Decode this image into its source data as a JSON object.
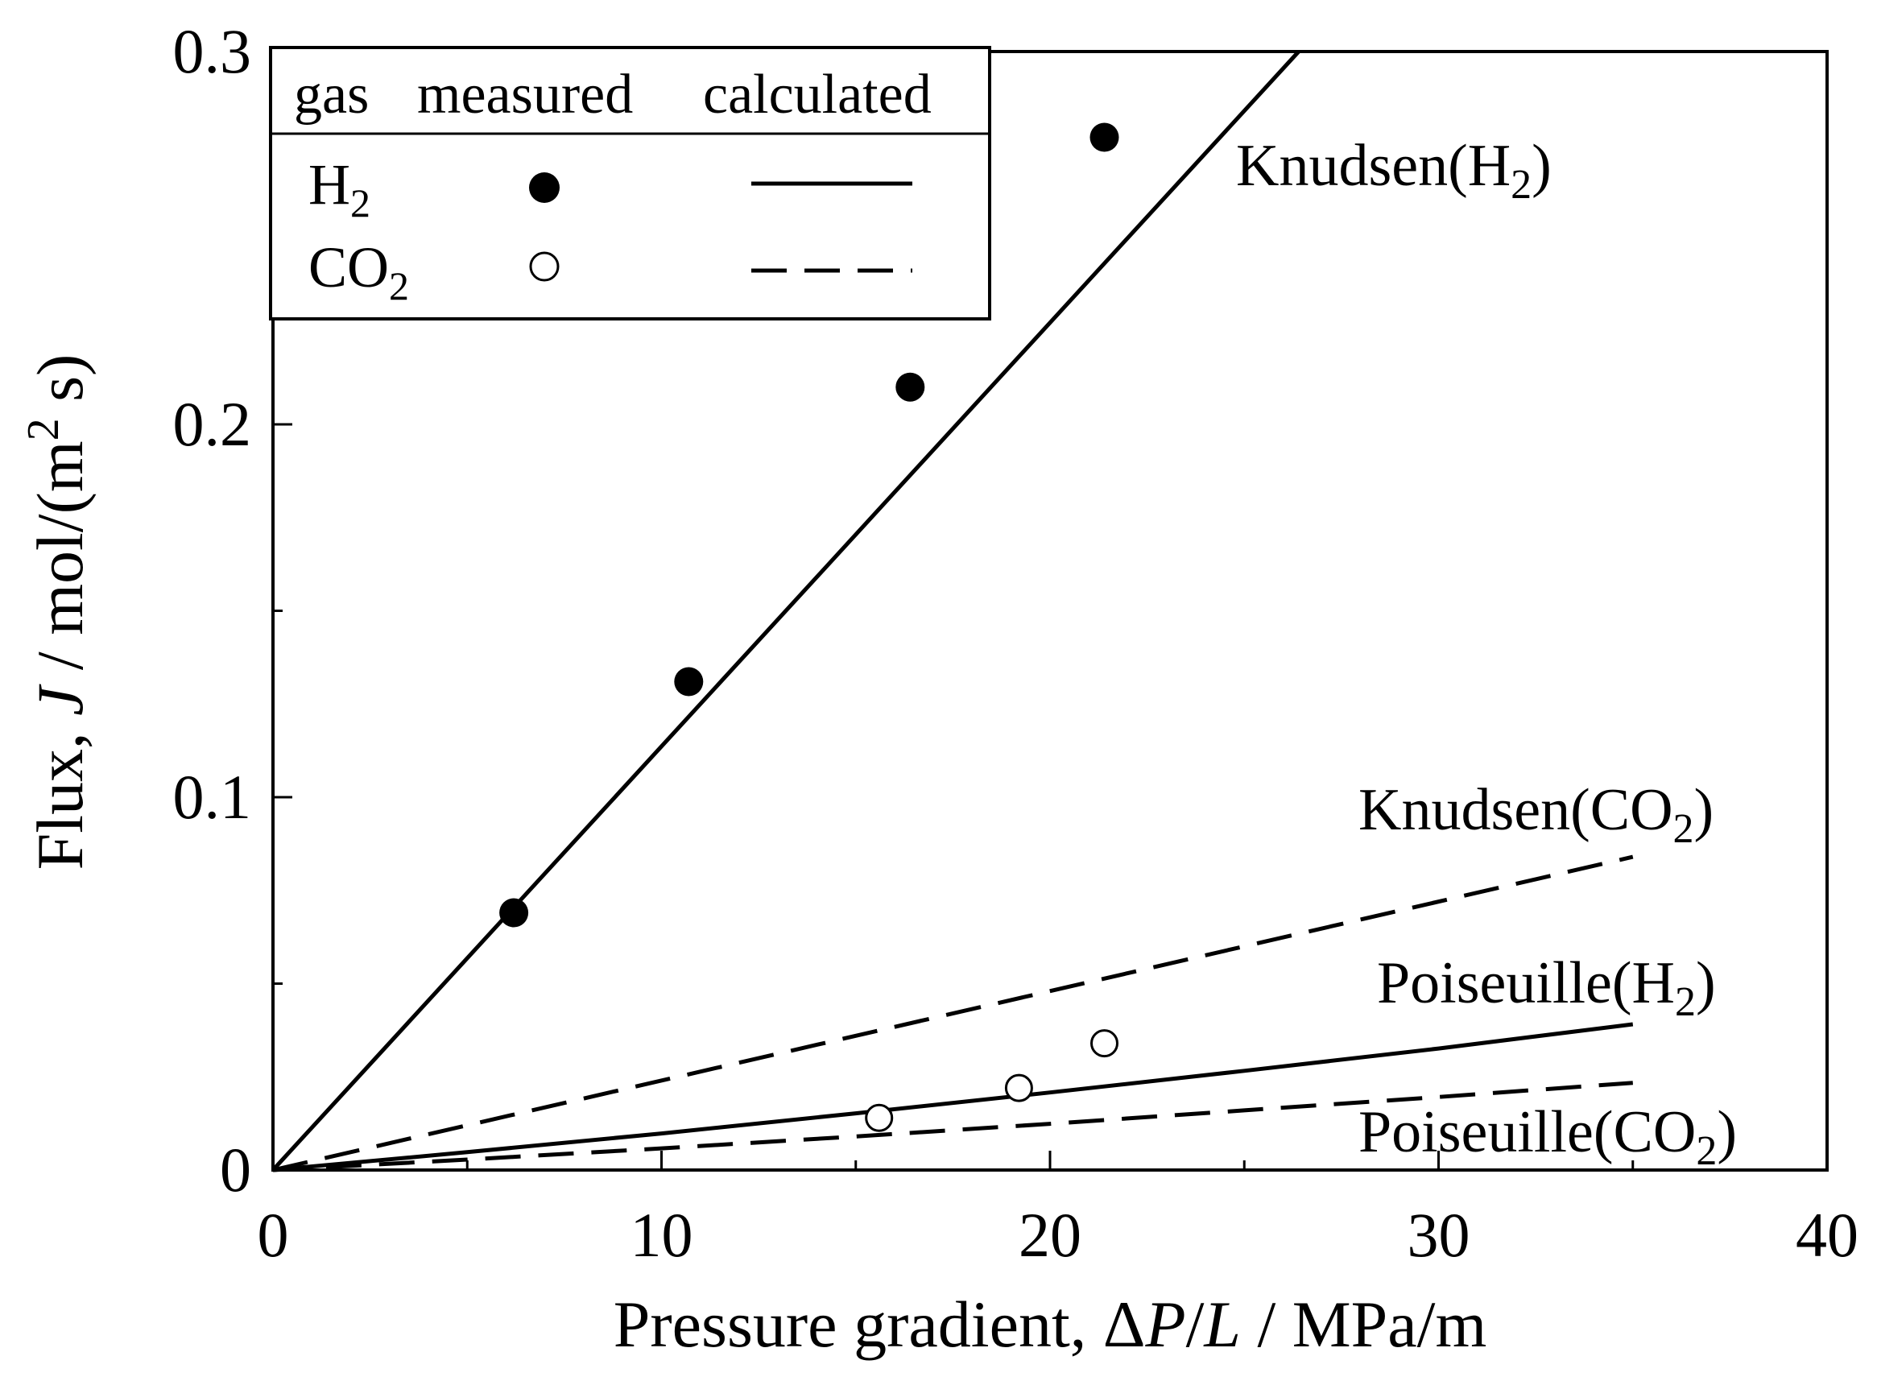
{
  "chart_data": {
    "type": "scatter",
    "title": "",
    "xlabel": {
      "prefix": "Pressure gradient, ",
      "delta": "Δ",
      "p": "P",
      "slash": "/",
      "l": "L",
      "suffix": " / MPa/m"
    },
    "ylabel": {
      "prefix": "Flux, ",
      "j": "J",
      "mid": " / mol/(m",
      "sup": "2",
      "suffix": " s)"
    },
    "xlim": [
      0,
      40
    ],
    "ylim": [
      0,
      0.3
    ],
    "x_ticks": [
      0,
      10,
      20,
      30,
      40
    ],
    "x_tick_labels": [
      "0",
      "10",
      "20",
      "30",
      "40"
    ],
    "x_minor_ticks": [
      5,
      15,
      25,
      35
    ],
    "y_ticks": [
      0,
      0.1,
      0.2,
      0.3
    ],
    "y_tick_labels": [
      "0",
      "0.1",
      "0.2",
      "0.3"
    ],
    "y_minor_ticks": [
      0.05,
      0.15,
      0.25
    ],
    "grid": false,
    "legend": {
      "position": "top-left",
      "headers": [
        "gas",
        "measured",
        "calculated"
      ],
      "entries": [
        {
          "base": "H",
          "sub": "2",
          "marker": "filled-circle",
          "line": "solid"
        },
        {
          "base": "CO",
          "sub": "2",
          "marker": "open-circle",
          "line": "dashed"
        }
      ]
    },
    "measured": [
      {
        "name": "H2",
        "marker": "filled",
        "points": [
          [
            6.2,
            0.069
          ],
          [
            10.7,
            0.131
          ],
          [
            16.4,
            0.21
          ],
          [
            21.4,
            0.277
          ]
        ]
      },
      {
        "name": "CO2",
        "marker": "open",
        "points": [
          [
            15.6,
            0.014
          ],
          [
            19.2,
            0.022
          ],
          [
            21.4,
            0.034
          ]
        ]
      }
    ],
    "calculated": [
      {
        "name": "Knudsen(H2)",
        "label_base": "Knudsen(H",
        "label_sub": "2",
        "label_end": ")",
        "style": "solid",
        "points": [
          [
            0,
            0
          ],
          [
            26.4,
            0.3
          ]
        ]
      },
      {
        "name": "Knudsen(CO2)",
        "label_base": "Knudsen(CO",
        "label_sub": "2",
        "label_end": ")",
        "style": "dashed",
        "points": [
          [
            0,
            0
          ],
          [
            35,
            0.084
          ]
        ]
      },
      {
        "name": "Poiseuille(H2)",
        "label_base": "Poiseuille(H",
        "label_sub": "2",
        "label_end": ")",
        "style": "solid",
        "points": [
          [
            0,
            0
          ],
          [
            5,
            0.0048
          ],
          [
            10,
            0.0098
          ],
          [
            15,
            0.0152
          ],
          [
            20,
            0.0208
          ],
          [
            25,
            0.0266
          ],
          [
            30,
            0.0326
          ],
          [
            35,
            0.0391
          ]
        ]
      },
      {
        "name": "Poiseuille(CO2)",
        "label_base": "Poiseuille(CO",
        "label_sub": "2",
        "label_end": ")",
        "style": "dashed",
        "points": [
          [
            0,
            0
          ],
          [
            5,
            0.0028
          ],
          [
            10,
            0.0058
          ],
          [
            15,
            0.009
          ],
          [
            20,
            0.0124
          ],
          [
            25,
            0.016
          ],
          [
            30,
            0.0196
          ],
          [
            35,
            0.0234
          ]
        ]
      }
    ],
    "colors": {
      "ink": "#000000",
      "background": "#ffffff"
    }
  }
}
